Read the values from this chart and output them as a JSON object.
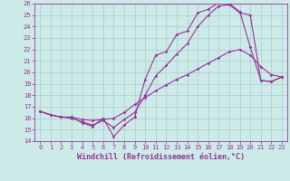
{
  "xlabel": "Windchill (Refroidissement éolien,°C)",
  "bg_color": "#cceae7",
  "grid_color": "#aacccc",
  "line_color": "#993399",
  "xlim": [
    -0.5,
    23.5
  ],
  "ylim": [
    14,
    26
  ],
  "xticks": [
    0,
    1,
    2,
    3,
    4,
    5,
    6,
    7,
    8,
    9,
    10,
    11,
    12,
    13,
    14,
    15,
    16,
    17,
    18,
    19,
    20,
    21,
    22,
    23
  ],
  "yticks": [
    14,
    15,
    16,
    17,
    18,
    19,
    20,
    21,
    22,
    23,
    24,
    25,
    26
  ],
  "line1_x": [
    0,
    1,
    2,
    3,
    4,
    5,
    6,
    7,
    8,
    9,
    10,
    11,
    12,
    13,
    14,
    15,
    16,
    17,
    18,
    19,
    20,
    21,
    22,
    23
  ],
  "line1_y": [
    16.6,
    16.3,
    16.1,
    16.1,
    15.6,
    15.3,
    16.0,
    14.4,
    15.4,
    16.1,
    19.4,
    21.5,
    21.8,
    23.3,
    23.6,
    25.2,
    25.5,
    26.1,
    26.0,
    25.3,
    22.2,
    19.3,
    19.2,
    19.6
  ],
  "line2_x": [
    0,
    1,
    2,
    3,
    4,
    5,
    6,
    7,
    8,
    9,
    10,
    11,
    12,
    13,
    14,
    15,
    16,
    17,
    18,
    19,
    20,
    21,
    22,
    23
  ],
  "line2_y": [
    16.6,
    16.3,
    16.1,
    16.1,
    15.9,
    15.8,
    15.9,
    16.0,
    16.5,
    17.2,
    17.8,
    18.4,
    18.9,
    19.4,
    19.8,
    20.3,
    20.8,
    21.3,
    21.8,
    22.0,
    21.5,
    20.5,
    19.8,
    19.6
  ],
  "line3_x": [
    0,
    1,
    2,
    3,
    4,
    5,
    6,
    7,
    8,
    9,
    10,
    11,
    12,
    13,
    14,
    15,
    16,
    17,
    18,
    19,
    20,
    21,
    22,
    23
  ],
  "line3_y": [
    16.6,
    16.3,
    16.1,
    16.0,
    15.7,
    15.4,
    15.8,
    15.2,
    15.9,
    16.5,
    18.0,
    19.7,
    20.6,
    21.6,
    22.5,
    24.0,
    25.0,
    25.8,
    25.9,
    25.2,
    25.0,
    19.3,
    19.2,
    19.6
  ],
  "marker": "D",
  "markersize": 1.8,
  "linewidth": 0.8,
  "tick_fontsize": 5.0,
  "xlabel_fontsize": 6.0
}
